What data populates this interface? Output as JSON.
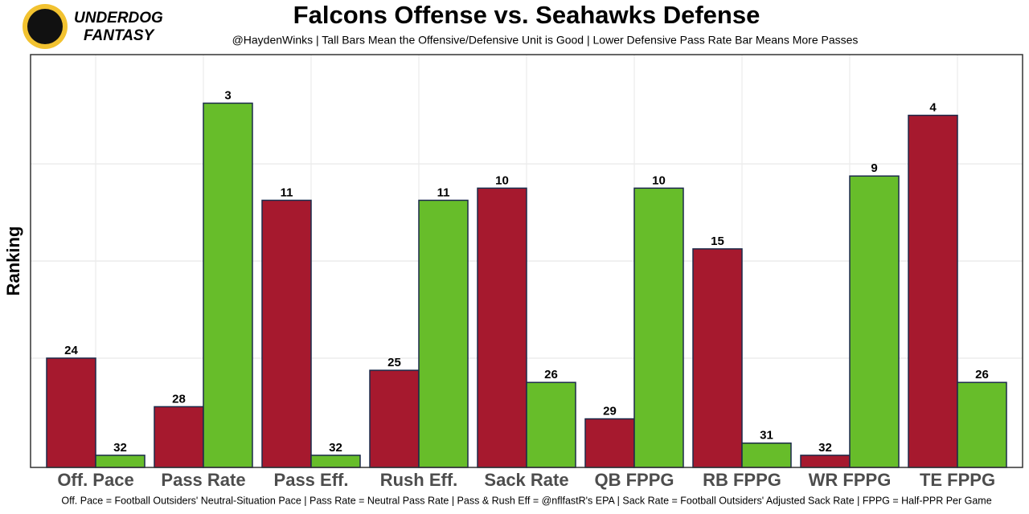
{
  "brand": [
    "UNDERDOG",
    "FANTASY"
  ],
  "chart_data": {
    "type": "bar",
    "title": "Falcons Offense vs. Seahawks Defense",
    "subtitle": "@HaydenWinks | Tall Bars Mean the Offensive/Defensive Unit is Good | Lower Defensive Pass Rate Bar Means More Passes",
    "y_label": "Ranking",
    "caption": "Off. Pace = Football Outsiders' Neutral-Situation Pace | Pass Rate = Neutral Pass Rate | Pass & Rush Eff = @nflfastR's EPA | Sack Rate = Football Outsiders' Adjusted Sack Rate | FPPG = Half-PPR Per Game",
    "categories": [
      "Off. Pace",
      "Pass Rate",
      "Pass Eff.",
      "Rush Eff.",
      "Sack Rate",
      "QB FPPG",
      "RB FPPG",
      "WR FPPG",
      "TE FPPG"
    ],
    "series": [
      {
        "color": "#a6192e",
        "values": [
          24,
          28,
          11,
          25,
          10,
          29,
          15,
          32,
          4
        ]
      },
      {
        "color": "#67bd2a",
        "values": [
          32,
          3,
          32,
          11,
          26,
          10,
          31,
          9,
          26
        ]
      }
    ],
    "ylim": [
      33,
      -1
    ],
    "yticks": [
      24,
      16,
      8
    ],
    "grid": true
  }
}
